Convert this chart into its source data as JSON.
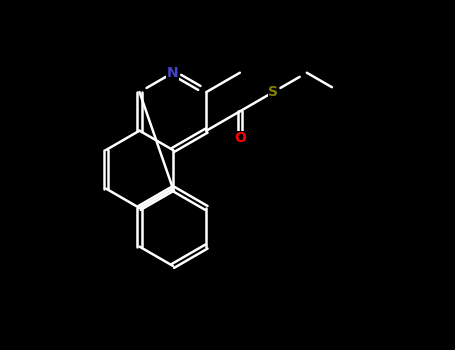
{
  "bg_color": "#000000",
  "bond_color": "#FFFFFF",
  "N_color": "#4444CC",
  "S_color": "#808000",
  "O_color": "#FF0000",
  "fig_width": 4.55,
  "fig_height": 3.5,
  "dpi": 100,
  "bond_lw": 1.8,
  "font_size": 11,
  "atoms": {
    "N": "N",
    "S": "S",
    "O": "O"
  }
}
